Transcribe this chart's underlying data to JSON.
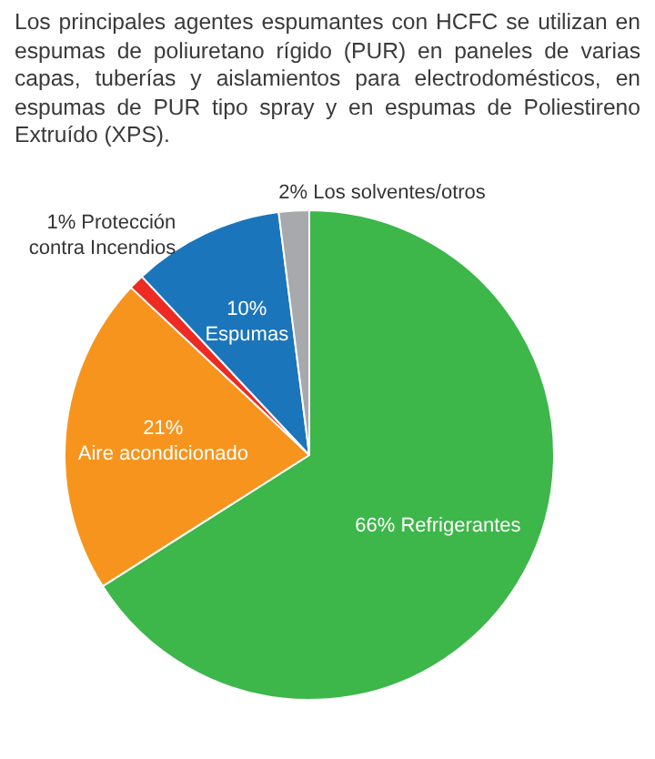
{
  "chart_data": {
    "type": "pie",
    "title": "Los principales agentes espumantes con HCFC se utilizan en espumas de poliuretano rígido (PUR) en paneles de varias capas, tuberías y aislamientos para electrodomésticos, en espumas de PUR tipo spray y en espumas de Poliestireno Extruído (XPS).",
    "categories": [
      "Refrigerantes",
      "Aire acondicionado",
      "Protección contra Incendios",
      "Espumas",
      "Los solventes/otros"
    ],
    "values": [
      66,
      21,
      1,
      10,
      2
    ],
    "value_labels": [
      "66%",
      "21%",
      "1%",
      "10%",
      "2%"
    ],
    "colors": [
      "#3db64a",
      "#f7941d",
      "#ed2a24",
      "#1b75bb",
      "#a7a9ac"
    ],
    "legend": false
  }
}
